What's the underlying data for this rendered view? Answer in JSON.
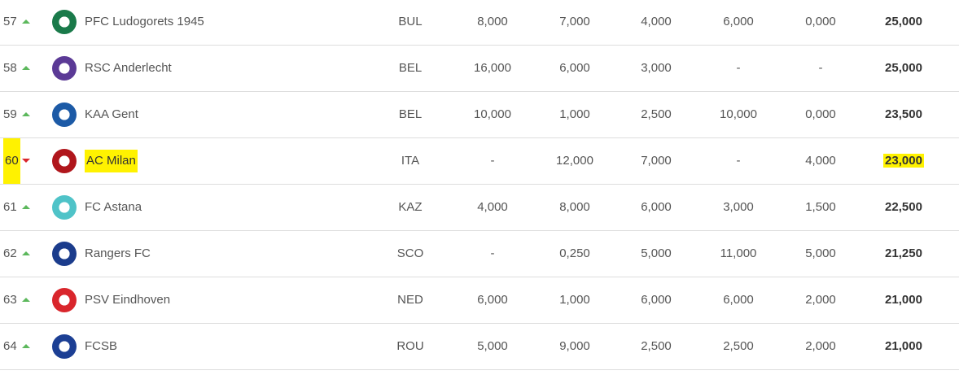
{
  "colors": {
    "up": "#5cb85c",
    "down": "#d9262c",
    "highlight": "#fff200"
  },
  "rows": [
    {
      "rank": "57",
      "trend": "up",
      "logo": "ludogorets-crest",
      "name": "PFC Ludogorets 1945",
      "country": "BUL",
      "s": [
        "8,000",
        "7,000",
        "4,000",
        "6,000",
        "0,000"
      ],
      "total": "25,000",
      "logo_color": "#1a7a4a"
    },
    {
      "rank": "58",
      "trend": "up",
      "logo": "anderlecht-crest",
      "name": "RSC Anderlecht",
      "country": "BEL",
      "s": [
        "16,000",
        "6,000",
        "3,000",
        "-",
        "-"
      ],
      "total": "25,000",
      "logo_color": "#5b3a96"
    },
    {
      "rank": "59",
      "trend": "up",
      "logo": "gent-crest",
      "name": "KAA Gent",
      "country": "BEL",
      "s": [
        "10,000",
        "1,000",
        "2,500",
        "10,000",
        "0,000"
      ],
      "total": "23,500",
      "logo_color": "#1c5aa6"
    },
    {
      "rank": "60",
      "trend": "down",
      "logo": "milan-crest",
      "name": "AC Milan",
      "country": "ITA",
      "s": [
        "-",
        "12,000",
        "7,000",
        "-",
        "4,000"
      ],
      "total": "23,000",
      "logo_color": "#b0161c",
      "highlighted": true
    },
    {
      "rank": "61",
      "trend": "up",
      "logo": "astana-crest",
      "name": "FC Astana",
      "country": "KAZ",
      "s": [
        "4,000",
        "8,000",
        "6,000",
        "3,000",
        "1,500"
      ],
      "total": "22,500",
      "logo_color": "#4fc3c8"
    },
    {
      "rank": "62",
      "trend": "up",
      "logo": "rangers-crest",
      "name": "Rangers FC",
      "country": "SCO",
      "s": [
        "-",
        "0,250",
        "5,000",
        "11,000",
        "5,000"
      ],
      "total": "21,250",
      "logo_color": "#1b3c8c"
    },
    {
      "rank": "63",
      "trend": "up",
      "logo": "psv-crest",
      "name": "PSV Eindhoven",
      "country": "NED",
      "s": [
        "6,000",
        "1,000",
        "6,000",
        "6,000",
        "2,000"
      ],
      "total": "21,000",
      "logo_color": "#d9262c"
    },
    {
      "rank": "64",
      "trend": "up",
      "logo": "fcsb-crest",
      "name": "FCSB",
      "country": "ROU",
      "s": [
        "5,000",
        "9,000",
        "2,500",
        "2,500",
        "2,000"
      ],
      "total": "21,000",
      "logo_color": "#1c3f94"
    }
  ]
}
